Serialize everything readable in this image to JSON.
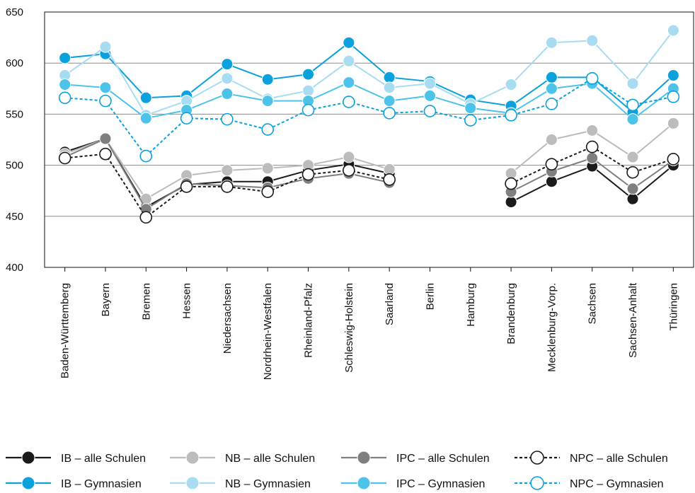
{
  "chart_data": {
    "type": "line",
    "ylim": [
      400,
      650
    ],
    "yticks": [
      400,
      450,
      500,
      550,
      600,
      650
    ],
    "grid": true,
    "legend_position": "bottom",
    "categories": [
      "Baden-Württemberg",
      "Bayern",
      "Bremen",
      "Hessen",
      "Niedersachsen",
      "Nordrhein-Westfalen",
      "Rheinland-Pfalz",
      "Schleswig-Holstein",
      "Saarland",
      "Berlin",
      "Hamburg",
      "Brandenburg",
      "Mecklenburg-Vorp.",
      "Sachsen",
      "Sachsen-Anhalt",
      "Thüringen"
    ],
    "series": [
      {
        "name": "IB – alle Schulen",
        "color": "#1a1a1a",
        "marker": "filled",
        "dashed": false,
        "values": [
          513,
          526,
          459,
          481,
          484,
          484,
          495,
          501,
          492,
          null,
          null,
          464,
          484,
          499,
          467,
          500
        ]
      },
      {
        "name": "NB – alle Schulen",
        "color": "#bcbcbc",
        "marker": "filled",
        "dashed": false,
        "values": [
          511,
          526,
          467,
          490,
          495,
          497,
          500,
          508,
          496,
          null,
          null,
          492,
          525,
          534,
          508,
          541
        ]
      },
      {
        "name": "IPC – alle Schulen",
        "color": "#7f7f7f",
        "marker": "filled",
        "dashed": false,
        "values": [
          508,
          526,
          457,
          482,
          480,
          478,
          487,
          492,
          483,
          null,
          null,
          474,
          494,
          507,
          477,
          505
        ]
      },
      {
        "name": "NPC – alle Schulen",
        "color": "#1a1a1a",
        "marker": "open",
        "dashed": true,
        "values": [
          507,
          511,
          449,
          479,
          479,
          474,
          491,
          495,
          486,
          null,
          null,
          482,
          501,
          518,
          493,
          506
        ]
      },
      {
        "name": "IB – Gymnasien",
        "color": "#0aa1dd",
        "marker": "filled",
        "dashed": false,
        "values": [
          605,
          609,
          566,
          568,
          599,
          584,
          589,
          620,
          586,
          582,
          564,
          558,
          586,
          586,
          552,
          588
        ]
      },
      {
        "name": "NB – Gymnasien",
        "color": "#a8dcf1",
        "marker": "filled",
        "dashed": false,
        "values": [
          588,
          616,
          549,
          563,
          585,
          565,
          573,
          602,
          576,
          580,
          560,
          579,
          620,
          622,
          580,
          632
        ]
      },
      {
        "name": "IPC – Gymnasien",
        "color": "#4dc3ea",
        "marker": "filled",
        "dashed": false,
        "values": [
          579,
          576,
          546,
          554,
          570,
          563,
          563,
          581,
          563,
          568,
          556,
          551,
          575,
          580,
          545,
          575
        ]
      },
      {
        "name": "NPC – Gymnasien",
        "color": "#0aa1dd",
        "marker": "open",
        "dashed": true,
        "values": [
          566,
          563,
          509,
          546,
          545,
          535,
          554,
          562,
          551,
          553,
          544,
          549,
          560,
          585,
          559,
          567
        ]
      }
    ]
  }
}
